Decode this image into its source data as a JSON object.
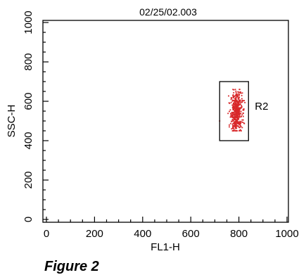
{
  "chart_data": {
    "type": "scatter",
    "title": "02/25/02.003",
    "xlabel": "FL1-H",
    "ylabel": "SSC-H",
    "xlim": [
      0,
      1000
    ],
    "ylim": [
      0,
      1000
    ],
    "xticks": [
      0,
      200,
      400,
      600,
      800,
      1000
    ],
    "yticks": [
      0,
      200,
      400,
      600,
      800,
      1000
    ],
    "minor_tick_step": 50,
    "grid": false,
    "legend": "none",
    "point_color": "#d8282a",
    "series": [
      {
        "cluster": {
          "x_center": 790,
          "y_center": 545,
          "x_spread": 12,
          "y_spread": 50,
          "n_points": 500
        },
        "outliers": [
          {
            "x": 720,
            "y": 500
          },
          {
            "x": 760,
            "y": 470
          },
          {
            "x": 770,
            "y": 460
          }
        ]
      }
    ],
    "gates": [
      {
        "label": "R2",
        "x_range": [
          720,
          840
        ],
        "y_range": [
          400,
          700
        ]
      }
    ]
  },
  "figure_caption": "Figure 2"
}
